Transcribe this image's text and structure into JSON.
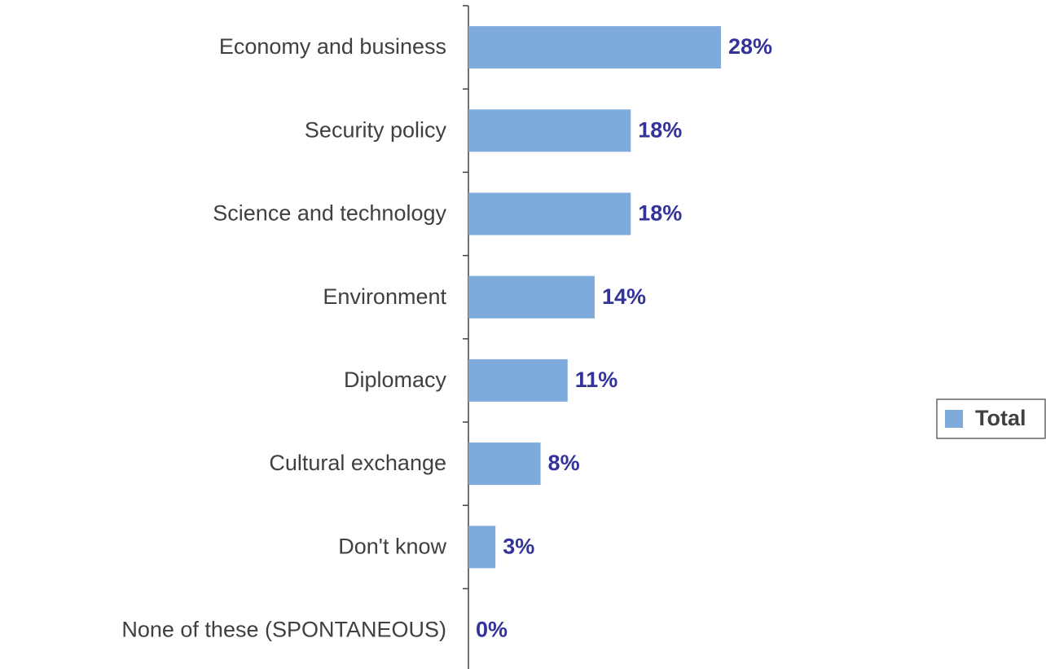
{
  "chart_data": {
    "type": "bar",
    "orientation": "horizontal",
    "categories": [
      "Economy and business",
      "Security policy",
      "Science and technology",
      "Environment",
      "Diplomacy",
      "Cultural exchange",
      "Don't know",
      "None of these (SPONTANEOUS)"
    ],
    "series": [
      {
        "name": "Total",
        "color": "#7eaadc",
        "values": [
          28,
          18,
          18,
          14,
          11,
          8,
          3,
          0
        ],
        "value_labels": [
          "28%",
          "18%",
          "18%",
          "14%",
          "11%",
          "8%",
          "3%",
          "0%"
        ]
      }
    ],
    "legend": "right"
  }
}
